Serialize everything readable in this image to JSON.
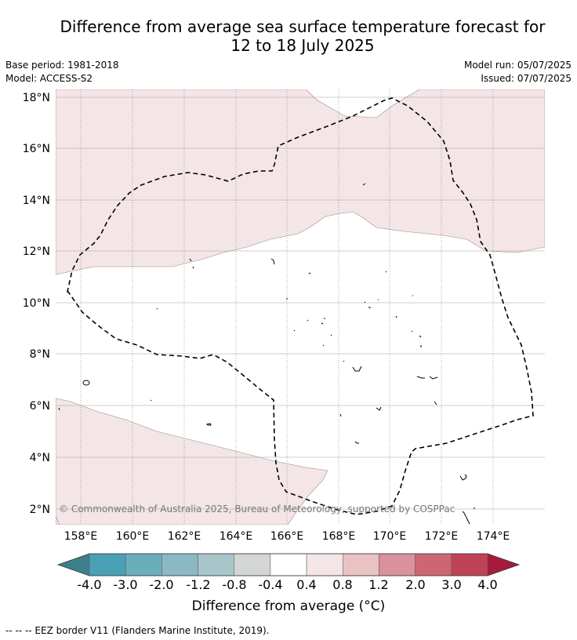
{
  "header": {
    "title_line1": "Difference from average sea surface temperature forecast for",
    "title_line2": "12 to 18 July 2025",
    "base_period": "Base period: 1981-2018",
    "model": "Model: ACCESS-S2",
    "model_run": "Model run: 05/07/2025",
    "issued": "Issued: 07/07/2025"
  },
  "map": {
    "lat_labels": [
      "18°N",
      "16°N",
      "14°N",
      "12°N",
      "10°N",
      "8°N",
      "6°N",
      "4°N",
      "2°N"
    ],
    "lon_labels": [
      "158°E",
      "160°E",
      "162°E",
      "164°E",
      "166°E",
      "168°E",
      "170°E",
      "172°E",
      "174°E"
    ],
    "copyright": "© Commonwealth of Australia 2025, Bureau of Meteorology, supported by COSPPac",
    "anomaly_fill_color": "#f4e6e6",
    "eez_color": "#000000"
  },
  "colorbar": {
    "title": "Difference from average (°C)",
    "tick_labels": [
      "-4.0",
      "-3.0",
      "-2.0",
      "-1.2",
      "-0.8",
      "-0.4",
      "0.4",
      "0.8",
      "1.2",
      "2.0",
      "3.0",
      "4.0"
    ],
    "colors": [
      "#3d7f8d",
      "#4aa0b5",
      "#6aaebb",
      "#8cb8c4",
      "#a8c6ca",
      "#d4d6d6",
      "#ffffff",
      "#f4e6e6",
      "#e9c3c2",
      "#d9919b",
      "#cc6673",
      "#bf4357",
      "#a61c3c"
    ]
  },
  "footer": {
    "legend": "--  --  -- EEZ border V11 (Flanders Marine Institute, 2019)."
  }
}
